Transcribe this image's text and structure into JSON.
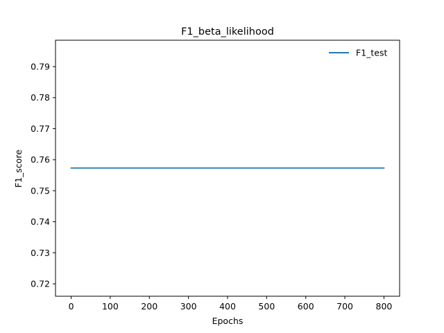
{
  "chart_data": {
    "type": "line",
    "title": "F1_beta_likelihood",
    "xlabel": "Epochs",
    "ylabel": "F1_score",
    "xlim": [
      -40,
      840
    ],
    "ylim": [
      0.716,
      0.7985
    ],
    "xticks": [
      0,
      100,
      200,
      300,
      400,
      500,
      600,
      700,
      800
    ],
    "yticks": [
      0.72,
      0.73,
      0.74,
      0.75,
      0.76,
      0.77,
      0.78,
      0.79
    ],
    "xtick_labels": [
      "0",
      "100",
      "200",
      "300",
      "400",
      "500",
      "600",
      "700",
      "800"
    ],
    "ytick_labels": [
      "0.72",
      "0.73",
      "0.74",
      "0.75",
      "0.76",
      "0.77",
      "0.78",
      "0.79"
    ],
    "grid": false,
    "legend_position": "upper right",
    "series": [
      {
        "name": "F1_test",
        "color": "#1f77b4",
        "x": [
          0,
          800
        ],
        "y": [
          0.7573,
          0.7573
        ]
      }
    ]
  }
}
